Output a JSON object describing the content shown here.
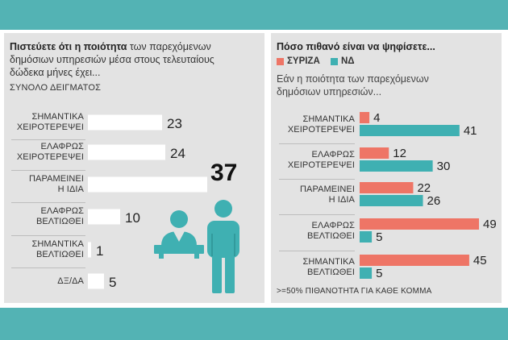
{
  "left": {
    "title_bold": "Πιστεύετε ότι η ποιότητα",
    "title_rest": " των παρεχόμενων",
    "title_line2": "δημόσιων υπηρεσιών μέσα στους τελευταίους",
    "title_line3": "δώδεκα μήνες έχει...",
    "sample_label": "ΣΥΝΟΛΟ ΔΕΙΓΜΑΤΟΣ"
  },
  "right": {
    "title": "Πόσο πιθανό είναι να ψηφίσετε...",
    "legend": [
      {
        "label": "ΣΥΡΙΖΑ",
        "color": "#ee7566"
      },
      {
        "label": "ΝΔ",
        "color": "#3fb0b2"
      }
    ],
    "subtitle_line1": "Εάν η ποιότητα των παρεχόμενων",
    "subtitle_line2": "δημόσιων υπηρεσιών...",
    "footnote": ">=50% ΠΙΘΑΝΟΤΗΤΑ ΓΙΑ ΚΑΘΕ ΚΟΜΜΑ"
  },
  "chart_data": [
    {
      "type": "bar",
      "orientation": "horizontal",
      "title": "Πιστεύετε ότι η ποιότητα των παρεχόμενων δημόσιων υπηρεσιών μέσα στους τελευταίους δώδεκα μήνες έχει...",
      "subtitle": "ΣΥΝΟΛΟ ΔΕΙΓΜΑΤΟΣ",
      "categories": [
        [
          "ΣΗΜΑΝΤΙΚΑ",
          "ΧΕΙΡΟΤΕΡΕΨΕΙ"
        ],
        [
          "ΕΛΑΦΡΩΣ",
          "ΧΕΙΡΟΤΕΡΕΨΕΙ"
        ],
        [
          "ΠΑΡΑΜΕΙΝΕΙ",
          "Η ΙΔΙΑ"
        ],
        [
          "ΕΛΑΦΡΩΣ",
          "ΒΕΛΤΙΩΘΕΙ"
        ],
        [
          "ΣΗΜΑΝΤΙΚΑ",
          "ΒΕΛΤΙΩΘΕΙ"
        ],
        [
          "ΔΞ/ΔΑ"
        ]
      ],
      "values": [
        23,
        24,
        37,
        10,
        1,
        5
      ],
      "bar_color": "#ffffff",
      "highlight_index": 2
    },
    {
      "type": "bar",
      "orientation": "horizontal",
      "title": "Πόσο πιθανό είναι να ψηφίσετε...",
      "subtitle": "Εάν η ποιότητα των παρεχόμενων δημόσιων υπηρεσιών...",
      "categories": [
        [
          "ΣΗΜΑΝΤΙΚΑ",
          "ΧΕΙΡΟΤΕΡΕΨΕΙ"
        ],
        [
          "ΕΛΑΦΡΩΣ",
          "ΧΕΙΡΟΤΕΡΕΨΕΙ"
        ],
        [
          "ΠΑΡΑΜΕΙΝΕΙ",
          "Η ΙΔΙΑ"
        ],
        [
          "ΕΛΑΦΡΩΣ",
          "ΒΕΛΤΙΩΘΕΙ"
        ],
        [
          "ΣΗΜΑΝΤΙΚΑ",
          "ΒΕΛΤΙΩΘΕΙ"
        ]
      ],
      "series": [
        {
          "name": "ΣΥΡΙΖΑ",
          "color": "#ee7566",
          "values": [
            4,
            12,
            22,
            49,
            45
          ]
        },
        {
          "name": "ΝΔ",
          "color": "#3fb0b2",
          "values": [
            41,
            30,
            26,
            5,
            5
          ]
        }
      ],
      "footnote": ">=50% ΠΙΘΑΝΟΤΗΤΑ ΓΙΑ ΚΑΘΕ ΚΟΜΜΑ"
    }
  ]
}
